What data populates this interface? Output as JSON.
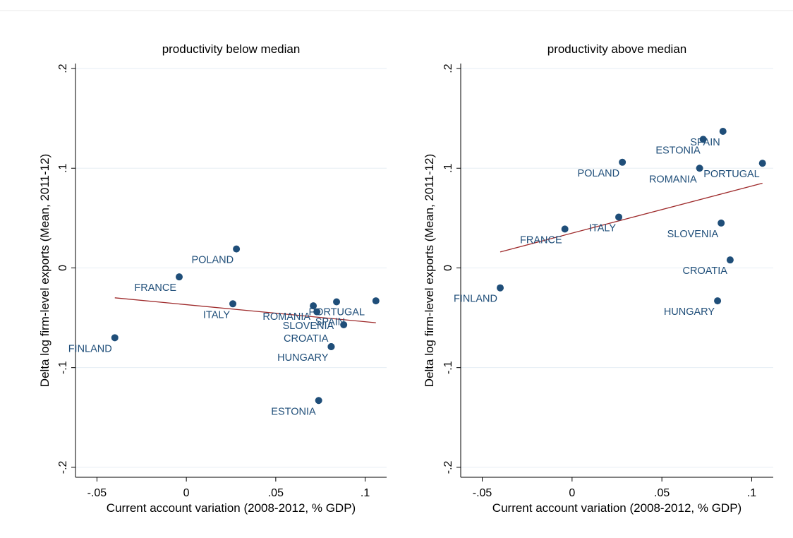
{
  "chart_data": [
    {
      "type": "scatter",
      "title": "productivity below median",
      "xlabel": "Current account variation (2008-2012, % GDP)",
      "ylabel": "Delta log firm-level exports (Mean, 2011-12)",
      "xlim": [
        -0.062,
        0.112
      ],
      "ylim": [
        -0.21,
        0.205
      ],
      "xticks": [
        -0.05,
        0,
        0.05,
        0.1
      ],
      "xticklabels": [
        "-.05",
        "0",
        ".05",
        ".1"
      ],
      "yticks": [
        -0.2,
        -0.1,
        0,
        0.1,
        0.2
      ],
      "yticklabels": [
        "-.2",
        "-.1",
        "0",
        ".1",
        ".2"
      ],
      "grid": true,
      "points": [
        {
          "label": "FINLAND",
          "x": -0.04,
          "y": -0.07,
          "pos": "below-left"
        },
        {
          "label": "FRANCE",
          "x": -0.004,
          "y": -0.009,
          "pos": "below-left"
        },
        {
          "label": "POLAND",
          "x": 0.028,
          "y": 0.019,
          "pos": "below-left"
        },
        {
          "label": "ITALY",
          "x": 0.026,
          "y": -0.036,
          "pos": "below-left"
        },
        {
          "label": "ROMANIA",
          "x": 0.071,
          "y": -0.038,
          "pos": "below-left"
        },
        {
          "label": "SPAIN",
          "x": 0.073,
          "y": -0.044,
          "pos": "below-right"
        },
        {
          "label": "PORTUGAL",
          "x": 0.084,
          "y": -0.034,
          "pos": "below-right"
        },
        {
          "label": "SLOVENIA",
          "x": 0.088,
          "y": -0.057,
          "pos": "left"
        },
        {
          "label": "CROATIA",
          "x": 0.081,
          "y": -0.079,
          "pos": "above-left"
        },
        {
          "label": "HUNGARY",
          "x": 0.081,
          "y": -0.079,
          "pos": "below-left"
        },
        {
          "label": "ESTONIA",
          "x": 0.074,
          "y": -0.133,
          "pos": "below-left"
        },
        {
          "label": "",
          "x": 0.106,
          "y": -0.033,
          "pos": "none"
        }
      ],
      "fit_line": {
        "x": [
          -0.04,
          0.106
        ],
        "y": [
          -0.03,
          -0.055
        ],
        "color": "#9e2a2b"
      },
      "marker_color": "#1f4e79"
    },
    {
      "type": "scatter",
      "title": "productivity above median",
      "xlabel": "Current account variation (2008-2012, % GDP)",
      "ylabel": "Delta log firm-level exports (Mean, 2011-12)",
      "xlim": [
        -0.062,
        0.112
      ],
      "ylim": [
        -0.21,
        0.205
      ],
      "xticks": [
        -0.05,
        0,
        0.05,
        0.1
      ],
      "xticklabels": [
        "-.05",
        "0",
        ".05",
        ".1"
      ],
      "yticks": [
        -0.2,
        -0.1,
        0,
        0.1,
        0.2
      ],
      "yticklabels": [
        "-.2",
        "-.1",
        "0",
        ".1",
        ".2"
      ],
      "grid": true,
      "points": [
        {
          "label": "FINLAND",
          "x": -0.04,
          "y": -0.02,
          "pos": "below-left"
        },
        {
          "label": "FRANCE",
          "x": -0.004,
          "y": 0.039,
          "pos": "below-left"
        },
        {
          "label": "ITALY",
          "x": 0.026,
          "y": 0.051,
          "pos": "below-left"
        },
        {
          "label": "POLAND",
          "x": 0.028,
          "y": 0.106,
          "pos": "below-left"
        },
        {
          "label": "ESTONIA",
          "x": 0.073,
          "y": 0.129,
          "pos": "below-left"
        },
        {
          "label": "SPAIN",
          "x": 0.084,
          "y": 0.137,
          "pos": "below-left"
        },
        {
          "label": "ROMANIA",
          "x": 0.071,
          "y": 0.1,
          "pos": "below-left"
        },
        {
          "label": "PORTUGAL",
          "x": 0.106,
          "y": 0.105,
          "pos": "below-left"
        },
        {
          "label": "SLOVENIA",
          "x": 0.083,
          "y": 0.045,
          "pos": "below-left"
        },
        {
          "label": "CROATIA",
          "x": 0.088,
          "y": 0.008,
          "pos": "below-left"
        },
        {
          "label": "HUNGARY",
          "x": 0.081,
          "y": -0.033,
          "pos": "below-left"
        }
      ],
      "fit_line": {
        "x": [
          -0.04,
          0.106
        ],
        "y": [
          0.016,
          0.085
        ],
        "color": "#9e2a2b"
      },
      "marker_color": "#1f4e79"
    }
  ]
}
